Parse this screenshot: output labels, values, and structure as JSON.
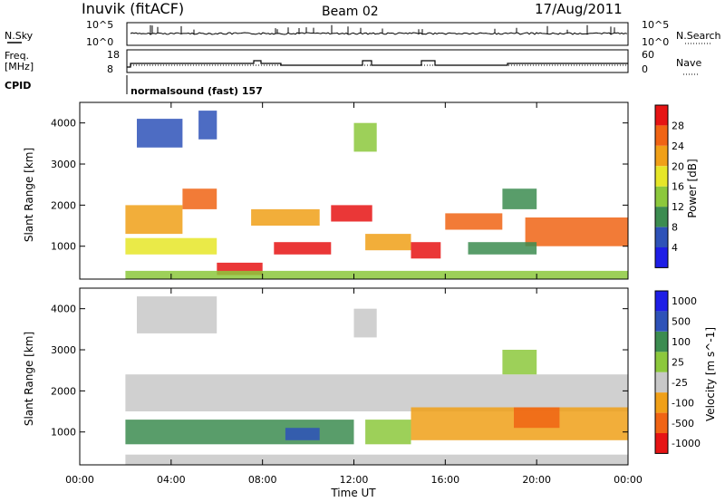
{
  "header": {
    "station": "Inuvik (fitACF)",
    "beam": "Beam 02",
    "date": "17/Aug/2011"
  },
  "noise_panel": {
    "left_label": "N.Sky",
    "left_ticks": [
      "10^5",
      "10^0"
    ],
    "right_ticks": [
      "10^5",
      "10^0"
    ],
    "right_label": "N.Search"
  },
  "freq_panel": {
    "left_label_line1": "Freq.",
    "left_label_line2": "[MHz]",
    "left_ticks": [
      "18",
      "8"
    ],
    "right_ticks": [
      "60",
      "0"
    ],
    "right_label": "Nave"
  },
  "cpid": {
    "label": "CPID",
    "program": "normalsound (fast)  157"
  },
  "x_axis": {
    "label": "Time UT",
    "tick_labels": [
      "00:00",
      "04:00",
      "08:00",
      "12:00",
      "16:00",
      "20:00",
      "00:00"
    ]
  },
  "colors": {
    "power": [
      "#1e1ee6",
      "#2e52b8",
      "#3c8c50",
      "#8cc83c",
      "#e6e628",
      "#f0a018",
      "#f06414",
      "#e61414"
    ],
    "velocity": [
      "#e61414",
      "#f06414",
      "#f0a018",
      "#c8c8c8",
      "#8cc83c",
      "#3c8c50",
      "#2e52b8",
      "#1e1ee6"
    ]
  },
  "chart_data": [
    {
      "type": "heatmap",
      "name": "power",
      "xlabel": "Time UT",
      "ylabel": "Slant Range [km]",
      "x_unit": "hours",
      "xlim": [
        0,
        24
      ],
      "ylim": [
        200,
        4500
      ],
      "y_ticks": [
        "1000",
        "2000",
        "3000",
        "4000"
      ],
      "y_tick_values": [
        1000,
        2000,
        3000,
        4000
      ],
      "data_start_hour": 2.0,
      "colorbar": {
        "label": "Power [dB]",
        "tick_labels": [
          "4",
          "8",
          "12",
          "16",
          "20",
          "24",
          "28"
        ],
        "levels": [
          4,
          8,
          12,
          16,
          20,
          24,
          28
        ]
      },
      "bands": [
        {
          "t_start": 6.0,
          "t_end": 8.0,
          "r_start": 300,
          "r_end": 600,
          "level": 7
        },
        {
          "t_start": 8.5,
          "t_end": 11.0,
          "r_start": 800,
          "r_end": 1100,
          "level": 7
        },
        {
          "t_start": 11.0,
          "t_end": 12.8,
          "r_start": 1600,
          "r_end": 2000,
          "level": 7
        },
        {
          "t_start": 14.5,
          "t_end": 15.8,
          "r_start": 700,
          "r_end": 1100,
          "level": 7
        },
        {
          "t_start": 16.0,
          "t_end": 18.5,
          "r_start": 1400,
          "r_end": 1800,
          "level": 6
        },
        {
          "t_start": 4.5,
          "t_end": 6.0,
          "r_start": 1900,
          "r_end": 2400,
          "level": 6
        },
        {
          "t_start": 7.5,
          "t_end": 10.5,
          "r_start": 1500,
          "r_end": 1900,
          "level": 5
        },
        {
          "t_start": 12.5,
          "t_end": 14.5,
          "r_start": 900,
          "r_end": 1300,
          "level": 5
        },
        {
          "t_start": 19.5,
          "t_end": 24.0,
          "r_start": 1000,
          "r_end": 1700,
          "level": 6
        },
        {
          "t_start": 2.0,
          "t_end": 4.5,
          "r_start": 1300,
          "r_end": 2000,
          "level": 5
        },
        {
          "t_start": 2.0,
          "t_end": 24.0,
          "r_start": 200,
          "r_end": 400,
          "level": 3
        },
        {
          "t_start": 2.0,
          "t_end": 6.0,
          "r_start": 800,
          "r_end": 1200,
          "level": 4
        },
        {
          "t_start": 17.0,
          "t_end": 20.0,
          "r_start": 800,
          "r_end": 1100,
          "level": 2
        },
        {
          "t_start": 18.5,
          "t_end": 20.0,
          "r_start": 1900,
          "r_end": 2400,
          "level": 2
        },
        {
          "t_start": 5.2,
          "t_end": 6.0,
          "r_start": 3600,
          "r_end": 4300,
          "level": 1
        },
        {
          "t_start": 12.0,
          "t_end": 13.0,
          "r_start": 3300,
          "r_end": 4000,
          "level": 3
        },
        {
          "t_start": 2.5,
          "t_end": 4.5,
          "r_start": 3400,
          "r_end": 4100,
          "level": 1
        }
      ]
    },
    {
      "type": "heatmap",
      "name": "velocity",
      "xlabel": "Time UT",
      "ylabel": "Slant Range [km]",
      "x_unit": "hours",
      "xlim": [
        0,
        24
      ],
      "ylim": [
        200,
        4500
      ],
      "y_ticks": [
        "1000",
        "2000",
        "3000",
        "4000"
      ],
      "y_tick_values": [
        1000,
        2000,
        3000,
        4000
      ],
      "data_start_hour": 2.0,
      "colorbar": {
        "label": "Velocity [m s^-1]",
        "tick_labels": [
          "-1000",
          "-500",
          "-100",
          "-25",
          "25",
          "100",
          "500",
          "1000"
        ],
        "levels": [
          -1000,
          -500,
          -100,
          -25,
          25,
          100,
          500,
          1000
        ]
      },
      "bands": [
        {
          "t_start": 2.0,
          "t_end": 24.0,
          "r_start": 1500,
          "r_end": 2400,
          "level": 3
        },
        {
          "t_start": 2.0,
          "t_end": 12.0,
          "r_start": 700,
          "r_end": 1300,
          "level": 5
        },
        {
          "t_start": 9.0,
          "t_end": 10.5,
          "r_start": 800,
          "r_end": 1100,
          "level": 6
        },
        {
          "t_start": 12.5,
          "t_end": 14.5,
          "r_start": 700,
          "r_end": 1300,
          "level": 4
        },
        {
          "t_start": 14.5,
          "t_end": 24.0,
          "r_start": 800,
          "r_end": 1600,
          "level": 2
        },
        {
          "t_start": 19.0,
          "t_end": 21.0,
          "r_start": 1100,
          "r_end": 1600,
          "level": 1
        },
        {
          "t_start": 2.0,
          "t_end": 24.0,
          "r_start": 200,
          "r_end": 450,
          "level": 3
        },
        {
          "t_start": 2.5,
          "t_end": 6.0,
          "r_start": 3400,
          "r_end": 4300,
          "level": 3
        },
        {
          "t_start": 12.0,
          "t_end": 13.0,
          "r_start": 3300,
          "r_end": 4000,
          "level": 3
        },
        {
          "t_start": 18.5,
          "t_end": 20.0,
          "r_start": 2400,
          "r_end": 3000,
          "level": 4
        }
      ]
    }
  ]
}
